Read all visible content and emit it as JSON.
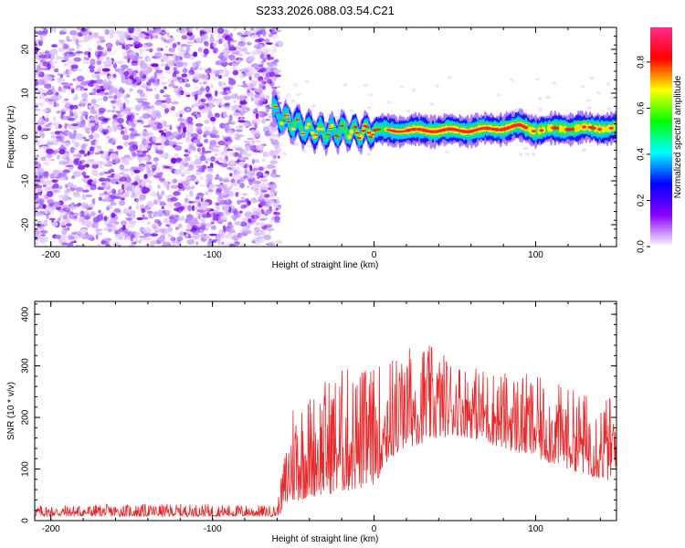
{
  "figure": {
    "title": "S233.2026.088.03.54.C21"
  },
  "colors": {
    "snr_line": "#e8282a",
    "axes": "#000000",
    "cbar_top": "#ff2a8a"
  },
  "chart_data": [
    {
      "type": "heatmap",
      "name": "spectrogram",
      "xlabel": "Height of straight line (km)",
      "ylabel": "Frequency (Hz)",
      "xlim": [
        -210,
        150
      ],
      "ylim": [
        -25,
        25
      ],
      "xticks": [
        -200,
        -100,
        0,
        100
      ],
      "yticks": [
        20,
        10,
        0,
        -10,
        -20
      ],
      "noise_region_end_km": -62,
      "ridge_freq_hz": [
        [
          -62,
          6
        ],
        [
          -56,
          4
        ],
        [
          -50,
          3
        ],
        [
          -40,
          1.5
        ],
        [
          -30,
          1
        ],
        [
          -20,
          1.5
        ],
        [
          -10,
          1
        ],
        [
          0,
          1.5
        ],
        [
          20,
          1.5
        ],
        [
          40,
          1.5
        ],
        [
          60,
          1.5
        ],
        [
          80,
          2
        ],
        [
          90,
          2.5
        ],
        [
          100,
          1.5
        ],
        [
          120,
          2
        ],
        [
          150,
          2
        ]
      ]
    },
    {
      "type": "colorbar",
      "name": "colorbar",
      "label": "Normalized spectral amplitude",
      "range": [
        0,
        0.95
      ],
      "ticks": [
        "0.0",
        "0.2",
        "0.4",
        "0.6",
        "0.8"
      ],
      "colormap": [
        "#ffffff",
        "#8a00ff",
        "#0000ff",
        "#00ffff",
        "#00ff00",
        "#ffff00",
        "#ff0000",
        "#ff2a8a"
      ]
    },
    {
      "type": "line",
      "name": "snr",
      "xlabel": "Height of straight line (km)",
      "ylabel": "SNR (10 * v/v)",
      "xlim": [
        -210,
        150
      ],
      "ylim": [
        0,
        425
      ],
      "xticks": [
        -200,
        -100,
        0,
        100
      ],
      "yticks": [
        400,
        300,
        200,
        100,
        0
      ],
      "envelope": {
        "x": [
          -210,
          -150,
          -100,
          -70,
          -60,
          -55,
          -50,
          -40,
          -30,
          -20,
          -10,
          0,
          10,
          20,
          30,
          40,
          50,
          60,
          70,
          80,
          90,
          100,
          110,
          120,
          130,
          140,
          150
        ],
        "base": [
          8,
          8,
          8,
          8,
          8,
          25,
          35,
          45,
          50,
          55,
          60,
          70,
          120,
          140,
          150,
          160,
          165,
          160,
          150,
          140,
          130,
          120,
          110,
          100,
          90,
          80,
          75
        ],
        "peak": [
          30,
          32,
          32,
          30,
          30,
          140,
          250,
          250,
          280,
          300,
          300,
          300,
          320,
          340,
          350,
          330,
          320,
          300,
          300,
          290,
          290,
          280,
          270,
          260,
          250,
          250,
          240
        ]
      }
    }
  ]
}
